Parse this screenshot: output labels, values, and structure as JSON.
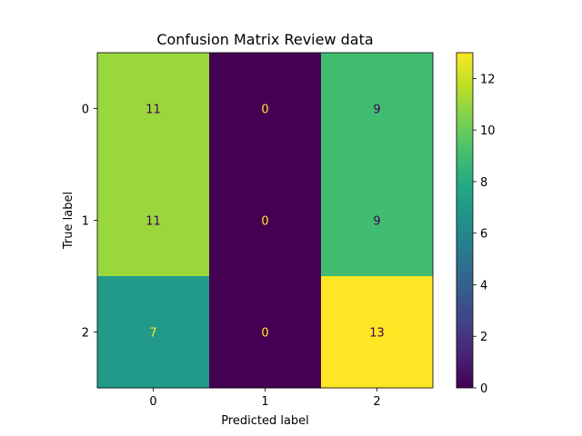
{
  "chart_data": {
    "type": "heatmap",
    "title": "Confusion Matrix Review data",
    "xlabel": "Predicted label",
    "ylabel": "True label",
    "x_categories": [
      "0",
      "1",
      "2"
    ],
    "y_categories": [
      "0",
      "1",
      "2"
    ],
    "values": [
      [
        11,
        0,
        9
      ],
      [
        11,
        0,
        9
      ],
      [
        7,
        0,
        13
      ]
    ],
    "colormap": "viridis",
    "colorbar_range": [
      0,
      13
    ],
    "colorbar_ticks": [
      0,
      2,
      4,
      6,
      8,
      10,
      12
    ],
    "grid": false
  }
}
